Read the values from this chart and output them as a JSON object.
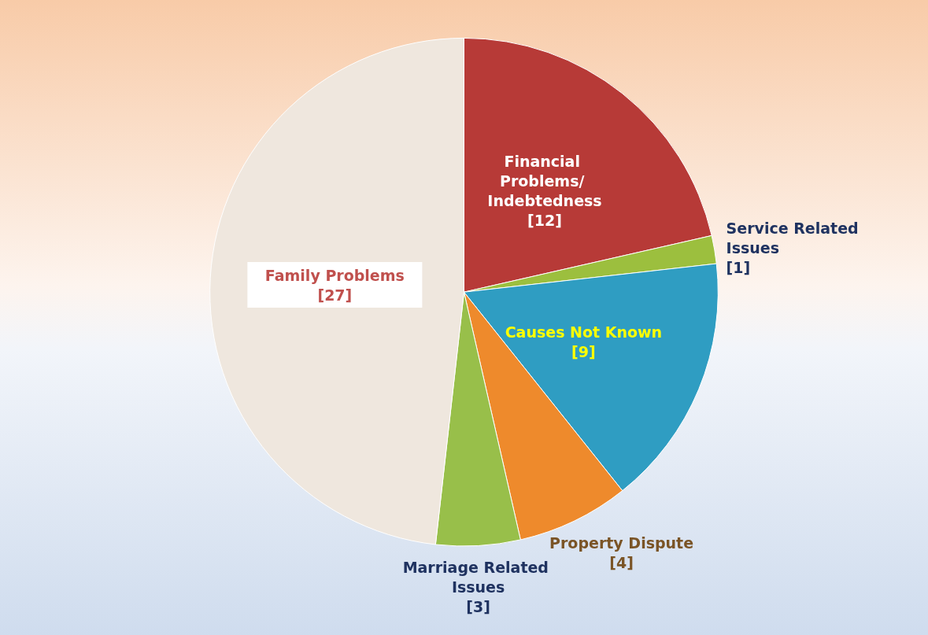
{
  "chart_data": {
    "type": "pie",
    "categories": [
      "Financial Problems/ Indebtedness",
      "Service Related Issues",
      "Causes Not Known",
      "Property Dispute",
      "Marriage Related Issues",
      "Family Problems"
    ],
    "values": [
      12,
      1,
      9,
      4,
      3,
      27
    ],
    "colors": [
      "#b73a37",
      "#9cbf3e",
      "#2f9dc2",
      "#ee8a2c",
      "#98bf4a",
      "#efe7de"
    ],
    "value_labels": [
      "[12]",
      "[1]",
      "[9]",
      "[4]",
      "[3]",
      "[27]"
    ],
    "legend": false
  }
}
